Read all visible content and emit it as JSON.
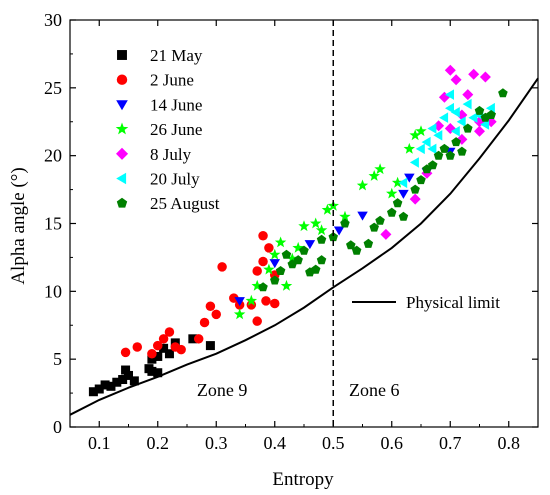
{
  "chart_data": {
    "type": "scatter",
    "title": "",
    "xlabel": "Entropy",
    "ylabel": "Alpha angle (°)",
    "xlim": [
      0.05,
      0.85
    ],
    "ylim": [
      0,
      30
    ],
    "x_ticks": [
      "0.1",
      "0.2",
      "0.3",
      "0.4",
      "0.5",
      "0.6",
      "0.7",
      "0.8"
    ],
    "y_ticks": [
      "0",
      "5",
      "10",
      "15",
      "20",
      "25",
      "30"
    ],
    "legend_position": "top-left",
    "grid": false,
    "series": [
      {
        "name": "21 May",
        "marker": "square",
        "color": "#000000",
        "points": [
          [
            0.09,
            2.6
          ],
          [
            0.1,
            2.8
          ],
          [
            0.11,
            3.1
          ],
          [
            0.12,
            3.0
          ],
          [
            0.13,
            3.3
          ],
          [
            0.14,
            3.5
          ],
          [
            0.145,
            4.2
          ],
          [
            0.15,
            3.8
          ],
          [
            0.16,
            3.4
          ],
          [
            0.185,
            4.3
          ],
          [
            0.19,
            5.0
          ],
          [
            0.19,
            4.1
          ],
          [
            0.2,
            4.0
          ],
          [
            0.2,
            5.2
          ],
          [
            0.21,
            5.8
          ],
          [
            0.22,
            5.4
          ],
          [
            0.23,
            6.2
          ],
          [
            0.26,
            6.5
          ],
          [
            0.29,
            6.0
          ]
        ]
      },
      {
        "name": "2 June",
        "marker": "circle",
        "color": "#ff0000",
        "points": [
          [
            0.145,
            5.5
          ],
          [
            0.165,
            5.9
          ],
          [
            0.19,
            5.4
          ],
          [
            0.2,
            6.0
          ],
          [
            0.21,
            6.5
          ],
          [
            0.22,
            7.0
          ],
          [
            0.23,
            5.9
          ],
          [
            0.24,
            5.7
          ],
          [
            0.27,
            6.5
          ],
          [
            0.28,
            7.7
          ],
          [
            0.29,
            8.9
          ],
          [
            0.3,
            8.3
          ],
          [
            0.31,
            11.8
          ],
          [
            0.33,
            9.5
          ],
          [
            0.34,
            9.0
          ],
          [
            0.36,
            9.0
          ],
          [
            0.37,
            11.5
          ],
          [
            0.38,
            12.2
          ],
          [
            0.38,
            14.1
          ],
          [
            0.385,
            9.3
          ],
          [
            0.39,
            13.2
          ],
          [
            0.4,
            11.2
          ],
          [
            0.4,
            9.1
          ],
          [
            0.37,
            7.8
          ]
        ]
      },
      {
        "name": "14 June",
        "marker": "triangle-down",
        "color": "#0000ff",
        "points": [
          [
            0.34,
            9.3
          ],
          [
            0.4,
            12.1
          ],
          [
            0.46,
            13.5
          ],
          [
            0.51,
            14.5
          ],
          [
            0.55,
            15.6
          ],
          [
            0.62,
            17.2
          ],
          [
            0.63,
            18.4
          ],
          [
            0.66,
            18.8
          ],
          [
            0.7,
            20.3
          ]
        ]
      },
      {
        "name": "26 June",
        "marker": "star",
        "color": "#00ff00",
        "points": [
          [
            0.34,
            8.3
          ],
          [
            0.36,
            9.3
          ],
          [
            0.37,
            10.4
          ],
          [
            0.39,
            11.6
          ],
          [
            0.4,
            12.7
          ],
          [
            0.41,
            13.6
          ],
          [
            0.42,
            10.4
          ],
          [
            0.43,
            12.4
          ],
          [
            0.44,
            13.2
          ],
          [
            0.45,
            14.8
          ],
          [
            0.47,
            15.0
          ],
          [
            0.48,
            14.5
          ],
          [
            0.49,
            16.0
          ],
          [
            0.5,
            16.3
          ],
          [
            0.52,
            15.5
          ],
          [
            0.55,
            17.8
          ],
          [
            0.57,
            18.5
          ],
          [
            0.58,
            19.0
          ],
          [
            0.6,
            17.2
          ],
          [
            0.61,
            18.0
          ],
          [
            0.63,
            20.5
          ],
          [
            0.64,
            21.5
          ],
          [
            0.65,
            21.8
          ]
        ]
      },
      {
        "name": "8 July",
        "marker": "diamond",
        "color": "#ff00ff",
        "points": [
          [
            0.59,
            14.2
          ],
          [
            0.64,
            16.8
          ],
          [
            0.66,
            18.7
          ],
          [
            0.68,
            22.2
          ],
          [
            0.69,
            24.3
          ],
          [
            0.7,
            26.3
          ],
          [
            0.71,
            25.6
          ],
          [
            0.72,
            23.0
          ],
          [
            0.73,
            24.5
          ],
          [
            0.74,
            26.0
          ],
          [
            0.75,
            22.5
          ],
          [
            0.76,
            25.8
          ],
          [
            0.75,
            21.8
          ],
          [
            0.77,
            22.5
          ],
          [
            0.7,
            22.0
          ],
          [
            0.72,
            21.2
          ]
        ]
      },
      {
        "name": "20 July",
        "marker": "triangle-left",
        "color": "#00ffff",
        "points": [
          [
            0.62,
            18.0
          ],
          [
            0.64,
            19.5
          ],
          [
            0.65,
            20.5
          ],
          [
            0.66,
            21.0
          ],
          [
            0.67,
            22.0
          ],
          [
            0.68,
            21.5
          ],
          [
            0.69,
            22.8
          ],
          [
            0.7,
            23.5
          ],
          [
            0.7,
            24.5
          ],
          [
            0.71,
            23.2
          ],
          [
            0.72,
            22.5
          ],
          [
            0.73,
            23.8
          ],
          [
            0.74,
            22.8
          ],
          [
            0.75,
            23.0
          ],
          [
            0.76,
            22.3
          ],
          [
            0.77,
            23.5
          ],
          [
            0.67,
            20.5
          ],
          [
            0.71,
            21.8
          ]
        ]
      },
      {
        "name": "25 August",
        "marker": "pentagon",
        "color": "#008000",
        "points": [
          [
            0.38,
            10.3
          ],
          [
            0.4,
            10.8
          ],
          [
            0.41,
            11.5
          ],
          [
            0.42,
            12.7
          ],
          [
            0.43,
            12.0
          ],
          [
            0.44,
            12.3
          ],
          [
            0.45,
            13.0
          ],
          [
            0.46,
            11.4
          ],
          [
            0.47,
            11.6
          ],
          [
            0.48,
            12.3
          ],
          [
            0.48,
            13.8
          ],
          [
            0.5,
            14.0
          ],
          [
            0.52,
            15.0
          ],
          [
            0.53,
            13.4
          ],
          [
            0.54,
            13.0
          ],
          [
            0.56,
            13.5
          ],
          [
            0.57,
            14.7
          ],
          [
            0.58,
            15.2
          ],
          [
            0.6,
            15.8
          ],
          [
            0.61,
            16.5
          ],
          [
            0.62,
            15.5
          ],
          [
            0.64,
            17.5
          ],
          [
            0.65,
            18.2
          ],
          [
            0.66,
            19.0
          ],
          [
            0.67,
            19.3
          ],
          [
            0.68,
            20.0
          ],
          [
            0.69,
            20.5
          ],
          [
            0.7,
            20.0
          ],
          [
            0.71,
            21.0
          ],
          [
            0.72,
            20.3
          ],
          [
            0.73,
            22.0
          ],
          [
            0.75,
            23.3
          ],
          [
            0.76,
            22.8
          ],
          [
            0.77,
            23.0
          ],
          [
            0.79,
            24.6
          ]
        ]
      }
    ],
    "limit_curve": {
      "name": "Physical limit",
      "color": "#000000",
      "points": [
        [
          0.05,
          0.9
        ],
        [
          0.1,
          2.0
        ],
        [
          0.15,
          2.9
        ],
        [
          0.2,
          3.7
        ],
        [
          0.25,
          4.6
        ],
        [
          0.3,
          5.4
        ],
        [
          0.35,
          6.4
        ],
        [
          0.4,
          7.5
        ],
        [
          0.45,
          8.8
        ],
        [
          0.5,
          10.3
        ],
        [
          0.55,
          11.7
        ],
        [
          0.6,
          13.2
        ],
        [
          0.65,
          15.0
        ],
        [
          0.7,
          17.2
        ],
        [
          0.75,
          19.8
        ],
        [
          0.8,
          22.6
        ],
        [
          0.85,
          25.7
        ]
      ]
    },
    "divider": {
      "x": 0.5,
      "style": "dashed"
    },
    "annotations": [
      {
        "text": "Zone 9",
        "x": 0.31,
        "y": 2.3
      },
      {
        "text": "Zone 6",
        "x": 0.57,
        "y": 2.3
      }
    ]
  }
}
